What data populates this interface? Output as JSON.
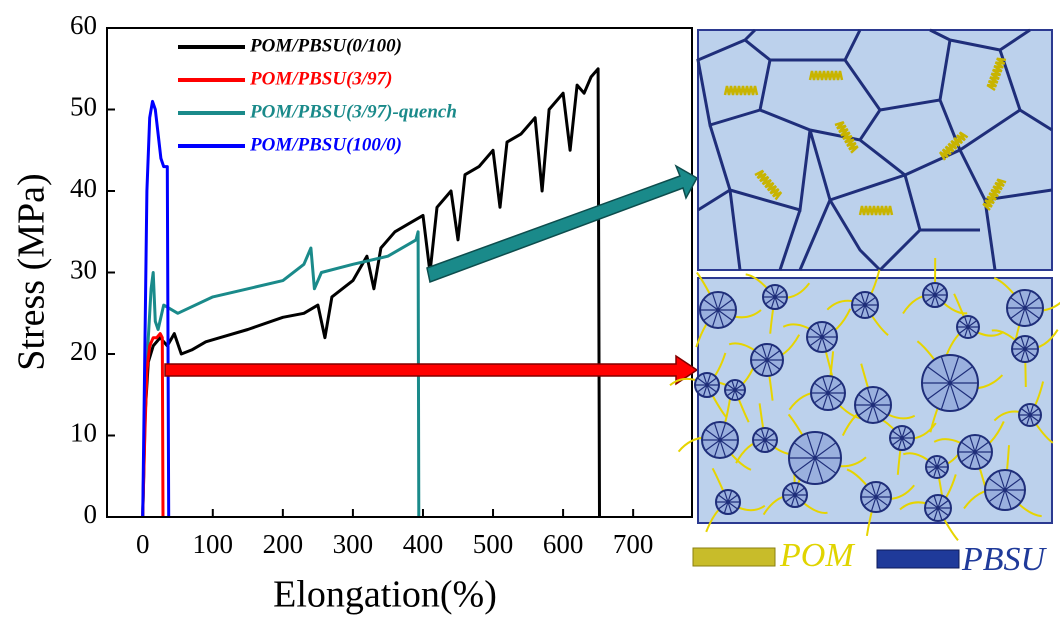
{
  "chart_data": {
    "type": "line",
    "x_label": "Elongation(%)",
    "y_label": "Stress (MPa)",
    "xlim": [
      -51,
      784
    ],
    "xticks": [
      0,
      100,
      200,
      300,
      400,
      500,
      600,
      700
    ],
    "ylim": [
      0,
      60
    ],
    "yticks": [
      0,
      10,
      20,
      30,
      40,
      50,
      60
    ],
    "legend": "upper left",
    "series": [
      {
        "name": "POM/PBSU(0/100)",
        "color": "#000000",
        "x": [
          0,
          3,
          8,
          15,
          25,
          35,
          45,
          55,
          70,
          90,
          110,
          150,
          200,
          230,
          250,
          260,
          270,
          300,
          320,
          330,
          340,
          360,
          380,
          400,
          410,
          420,
          440,
          450,
          460,
          480,
          500,
          510,
          520,
          540,
          560,
          570,
          580,
          600,
          610,
          620,
          630,
          640,
          650,
          652
        ],
        "values": [
          0,
          12,
          19,
          21,
          22,
          21,
          22.5,
          20,
          20.5,
          21.5,
          22,
          23,
          24.5,
          25,
          26,
          22,
          27,
          29,
          32,
          28,
          33,
          35,
          36,
          37,
          30,
          38,
          40,
          34,
          42,
          43,
          45,
          38,
          46,
          47,
          49,
          40,
          50,
          52,
          45,
          53,
          52,
          54,
          55,
          0
        ]
      },
      {
        "name": "POM/PBSU(3/97)",
        "color": "#ff0000",
        "x": [
          0,
          3,
          6,
          10,
          15,
          20,
          25,
          28,
          29
        ],
        "values": [
          0,
          10,
          18,
          21,
          22,
          22,
          22.5,
          22,
          0
        ]
      },
      {
        "name": "POM/PBSU(3/97)-quench",
        "color": "#1a8a8a",
        "x": [
          0,
          4,
          8,
          12,
          15,
          18,
          22,
          30,
          50,
          100,
          150,
          200,
          230,
          240,
          245,
          255,
          300,
          350,
          390,
          393,
          394
        ],
        "values": [
          0,
          14,
          22,
          28,
          30,
          24,
          23,
          26,
          25,
          27,
          28,
          29,
          31,
          33,
          28,
          30,
          31,
          32,
          34,
          35,
          0
        ]
      },
      {
        "name": "POM/PBSU(100/0)",
        "color": "#0000ff",
        "x": [
          0,
          3,
          6,
          10,
          14,
          18,
          22,
          26,
          30,
          35,
          37
        ],
        "values": [
          0,
          20,
          40,
          49,
          51,
          50,
          47,
          44,
          43,
          43,
          0
        ]
      }
    ]
  },
  "schematic": {
    "legend": [
      "POM",
      "PBSU"
    ]
  }
}
